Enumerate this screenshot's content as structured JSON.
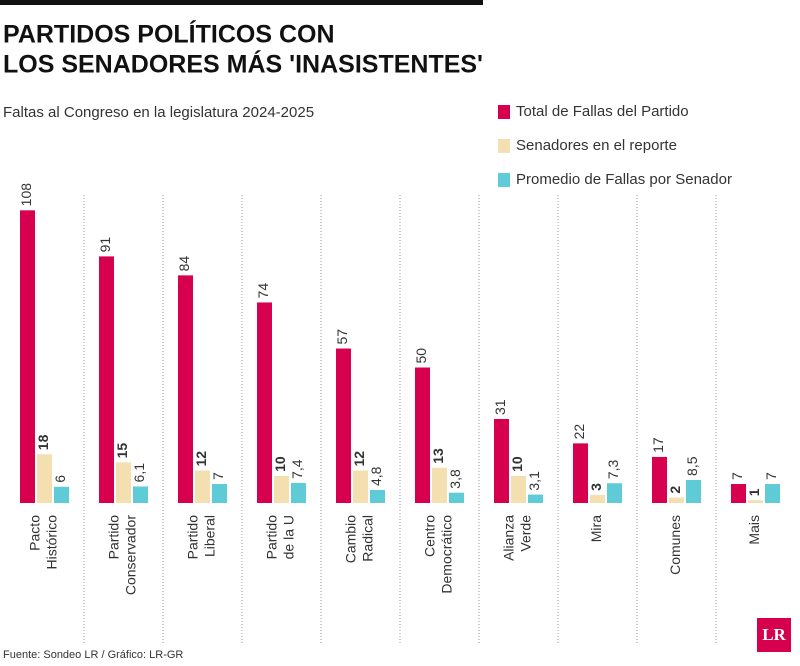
{
  "chart_data": {
    "type": "bar",
    "title": [
      "PARTIDOS POLÍTICOS CON",
      "LOS SENADORES MÁS 'INASISTENTES'"
    ],
    "subtitle": "Faltas al Congreso en la legislatura 2024-2025",
    "categories": [
      [
        "Pacto",
        "Histórico"
      ],
      [
        "Partido",
        "Conservador"
      ],
      [
        "Partido",
        "Liberal"
      ],
      [
        "Partido",
        "de la U"
      ],
      [
        "Cambio",
        "Radical"
      ],
      [
        "Centro",
        "Democrático"
      ],
      [
        "Alianza",
        "Verde"
      ],
      [
        "Mira"
      ],
      [
        "Comunes"
      ],
      [
        "Mais"
      ]
    ],
    "series": [
      {
        "name": "Total de Fallas del Partido",
        "color": "#d6004f",
        "values": [
          108,
          91,
          84,
          74,
          57,
          50,
          31,
          22,
          17,
          7
        ]
      },
      {
        "name": "Senadores en el reporte",
        "color": "#f3dfb0",
        "values": [
          18,
          15,
          12,
          10,
          12,
          13,
          10,
          3,
          2,
          1
        ]
      },
      {
        "name": "Promedio de Fallas por Senador",
        "color": "#5fcbd6",
        "values": [
          6,
          6.1,
          7,
          7.4,
          4.8,
          3.8,
          3.1,
          7.3,
          8.5,
          7
        ],
        "value_labels": [
          "6",
          "6,1",
          "7",
          "7,4",
          "4,8",
          "3,8",
          "3,1",
          "7,3",
          "8,5",
          "7"
        ]
      }
    ],
    "source": "Fuente: Sondeo LR / Gráfico: LR-GR",
    "logo": "LR"
  }
}
